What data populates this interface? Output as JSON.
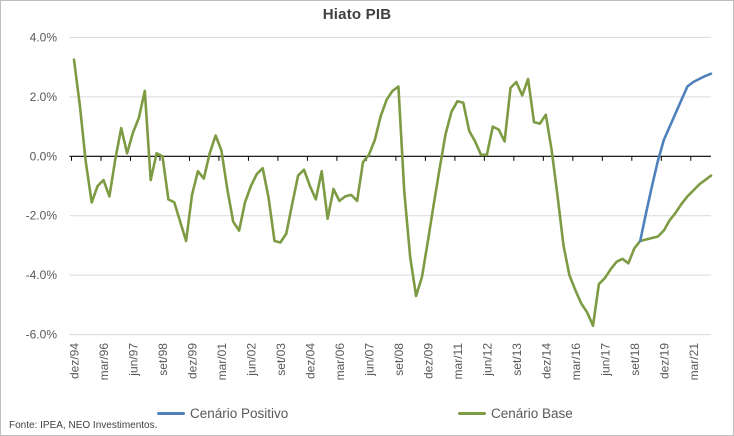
{
  "title": "Hiato PIB",
  "source_note": "Fonte: IPEA, NEO Investimentos.",
  "legend": [
    {
      "label": "Cenário Positivo",
      "color": "#4F81BD"
    },
    {
      "label": "Cenário Base",
      "color": "#7D9B43"
    }
  ],
  "chart_data": {
    "type": "line",
    "title": "Hiato PIB",
    "frequency": "quarterly",
    "x_start": "dez/94",
    "x_end": "dez/21",
    "x_tick_labels": [
      "dez/94",
      "mar/96",
      "jun/97",
      "set/98",
      "dez/99",
      "mar/01",
      "jun/02",
      "set/03",
      "dez/04",
      "mar/06",
      "jun/07",
      "set/08",
      "dez/09",
      "mar/11",
      "jun/12",
      "set/13",
      "dez/14",
      "mar/16",
      "jun/17",
      "set/18",
      "dez/19",
      "mar/21"
    ],
    "x_label_step_quarters": 5,
    "y_axis": {
      "unit": "%",
      "min": -6.0,
      "max": 4.0,
      "tick_values": [
        4,
        2,
        0,
        -2,
        -4,
        -6
      ],
      "tick_labels": [
        "4.0%",
        "2.0%",
        "0.0%",
        "-2.0%",
        "-4.0%",
        "-6.0%"
      ]
    },
    "grid": true,
    "legend_position": "bottom",
    "series": [
      {
        "name": "Cenário Base",
        "color": "#7D9B43",
        "start_index": 0,
        "starts_at": "dez/94",
        "values": [
          3.25,
          1.7,
          -0.2,
          -1.55,
          -1.0,
          -0.8,
          -1.35,
          -0.1,
          0.95,
          0.1,
          0.8,
          1.3,
          2.2,
          -0.8,
          0.1,
          0.0,
          -1.45,
          -1.55,
          -2.2,
          -2.85,
          -1.3,
          -0.5,
          -0.75,
          0.1,
          0.7,
          0.2,
          -1.1,
          -2.2,
          -2.5,
          -1.55,
          -1.0,
          -0.6,
          -0.4,
          -1.4,
          -2.85,
          -2.9,
          -2.6,
          -1.6,
          -0.65,
          -0.45,
          -1.0,
          -1.45,
          -0.5,
          -2.1,
          -1.1,
          -1.5,
          -1.35,
          -1.3,
          -1.5,
          -0.2,
          0.05,
          0.55,
          1.35,
          1.9,
          2.2,
          2.35,
          -1.2,
          -3.4,
          -4.7,
          -4.05,
          -2.85,
          -1.6,
          -0.4,
          0.75,
          1.5,
          1.85,
          1.8,
          0.85,
          0.5,
          0.05,
          0.05,
          1.0,
          0.9,
          0.5,
          2.3,
          2.5,
          2.05,
          2.6,
          1.15,
          1.1,
          1.4,
          0.2,
          -1.35,
          -3.0,
          -4.0,
          -4.5,
          -4.95,
          -5.25,
          -5.7,
          -4.3,
          -4.1,
          -3.8,
          -3.55,
          -3.45,
          -3.6,
          -3.1,
          -2.85,
          -2.8,
          -2.75,
          -2.7,
          -2.5,
          -2.15,
          -1.9,
          -1.6,
          -1.35,
          -1.15,
          -0.95,
          -0.8,
          -0.65
        ]
      },
      {
        "name": "Cenário Positivo",
        "color": "#4F81BD",
        "start_index": 96,
        "starts_at": "dez/18",
        "values": [
          -2.85,
          -1.9,
          -1.0,
          -0.15,
          0.55,
          1.0,
          1.45,
          1.9,
          2.35,
          2.5,
          2.6,
          2.7,
          2.78
        ]
      }
    ]
  }
}
